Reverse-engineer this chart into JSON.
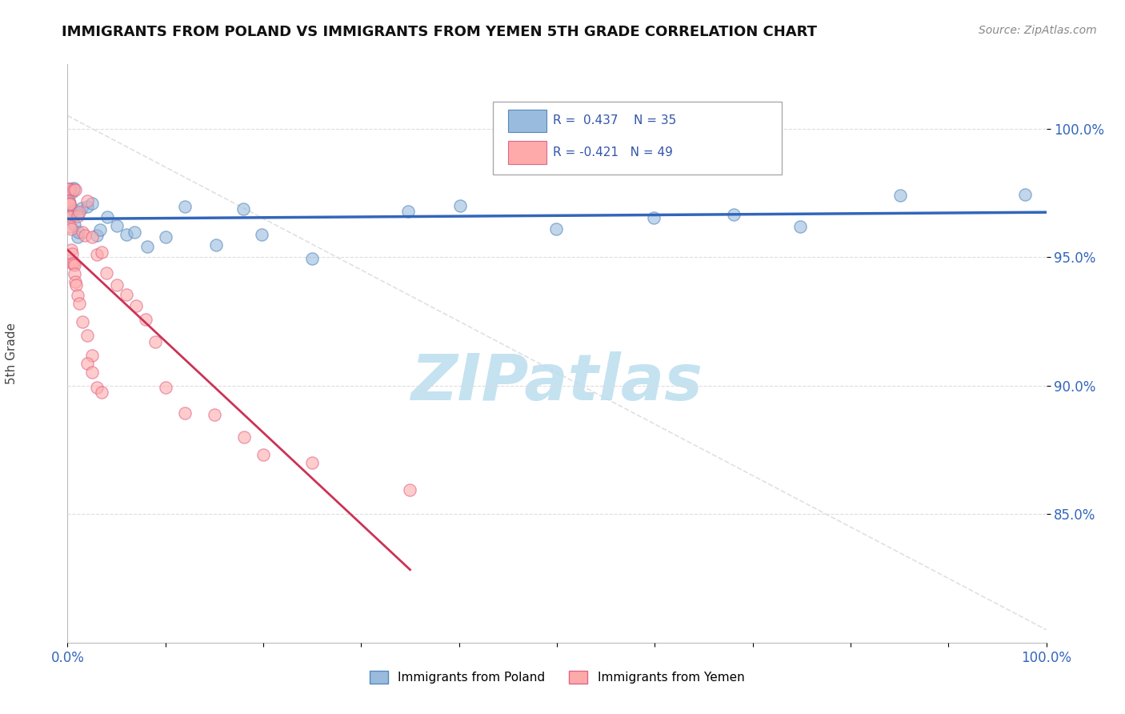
{
  "title": "IMMIGRANTS FROM POLAND VS IMMIGRANTS FROM YEMEN 5TH GRADE CORRELATION CHART",
  "source_text": "Source: ZipAtlas.com",
  "ylabel": "5th Grade",
  "legend_label1": "Immigrants from Poland",
  "legend_label2": "Immigrants from Yemen",
  "R1": 0.437,
  "N1": 35,
  "R2": -0.421,
  "N2": 49,
  "color1": "#99BBDD",
  "color2": "#FFAAAA",
  "color1_edge": "#5588BB",
  "color2_edge": "#DD6688",
  "trendline1_color": "#3366BB",
  "trendline2_color": "#CC3355",
  "xlim": [
    0.0,
    1.0
  ],
  "ylim": [
    0.8,
    1.025
  ],
  "yticks": [
    0.85,
    0.9,
    0.95,
    1.0
  ],
  "ytick_labels": [
    "85.0%",
    "90.0%",
    "95.0%",
    "100.0%"
  ],
  "watermark_text": "ZIPatlas",
  "watermark_color": "#BBDDEE",
  "background_color": "#FFFFFF",
  "grid_color": "#DDDDDD",
  "poland_x": [
    0.001,
    0.002,
    0.003,
    0.004,
    0.005,
    0.006,
    0.007,
    0.008,
    0.009,
    0.01,
    0.012,
    0.015,
    0.02,
    0.025,
    0.03,
    0.035,
    0.04,
    0.05,
    0.06,
    0.07,
    0.08,
    0.1,
    0.12,
    0.15,
    0.18,
    0.2,
    0.25,
    0.35,
    0.4,
    0.5,
    0.6,
    0.68,
    0.75,
    0.85,
    0.98
  ],
  "poland_y": [
    0.978,
    0.975,
    0.972,
    0.97,
    0.968,
    0.966,
    0.963,
    0.975,
    0.96,
    0.972,
    0.965,
    0.968,
    0.963,
    0.97,
    0.96,
    0.955,
    0.965,
    0.962,
    0.958,
    0.96,
    0.955,
    0.962,
    0.968,
    0.955,
    0.965,
    0.96,
    0.955,
    0.968,
    0.965,
    0.962,
    0.968,
    0.97,
    0.965,
    0.975,
    0.978
  ],
  "yemen_x": [
    0.001,
    0.001,
    0.001,
    0.002,
    0.002,
    0.002,
    0.003,
    0.003,
    0.004,
    0.004,
    0.005,
    0.005,
    0.006,
    0.006,
    0.007,
    0.007,
    0.008,
    0.008,
    0.009,
    0.01,
    0.01,
    0.012,
    0.012,
    0.015,
    0.015,
    0.018,
    0.02,
    0.02,
    0.025,
    0.025,
    0.03,
    0.035,
    0.04,
    0.05,
    0.06,
    0.07,
    0.08,
    0.09,
    0.02,
    0.025,
    0.03,
    0.035,
    0.1,
    0.12,
    0.15,
    0.18,
    0.2,
    0.25,
    0.35
  ],
  "yemen_y": [
    0.978,
    0.975,
    0.972,
    0.97,
    0.968,
    0.965,
    0.963,
    0.96,
    0.958,
    0.955,
    0.953,
    0.95,
    0.975,
    0.948,
    0.945,
    0.943,
    0.94,
    0.972,
    0.938,
    0.935,
    0.968,
    0.965,
    0.93,
    0.962,
    0.925,
    0.958,
    0.975,
    0.92,
    0.955,
    0.915,
    0.95,
    0.948,
    0.945,
    0.94,
    0.935,
    0.93,
    0.925,
    0.92,
    0.91,
    0.905,
    0.9,
    0.895,
    0.9,
    0.89,
    0.885,
    0.88,
    0.875,
    0.87,
    0.86
  ]
}
